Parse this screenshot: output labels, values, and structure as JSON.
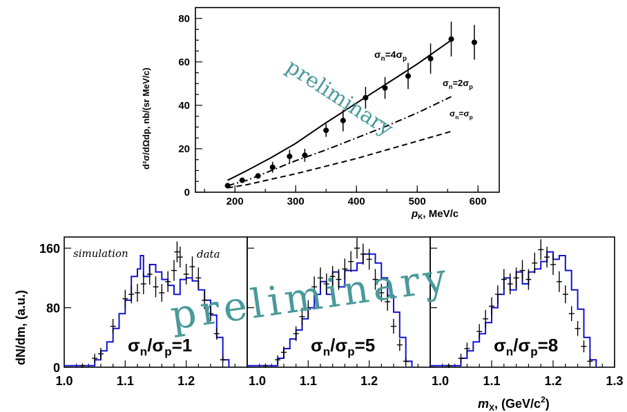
{
  "chart_data": [
    {
      "type": "scatter",
      "xlabel_main": "p",
      "xlabel_sub": "K",
      "xlabel_unit": ", MeV/c",
      "ylabel": "d²σ/dΩdp, nb/(sr MeV/c)",
      "xlim": [
        135,
        635
      ],
      "ylim": [
        0,
        85
      ],
      "x_ticks": [
        200,
        300,
        400,
        500,
        600
      ],
      "y_ticks": [
        0,
        20,
        40,
        60,
        80
      ],
      "points": [
        {
          "x": 188,
          "y": 3,
          "err": 0.6
        },
        {
          "x": 212,
          "y": 5.5,
          "err": 1.2
        },
        {
          "x": 238,
          "y": 7.5,
          "err": 1.3
        },
        {
          "x": 262,
          "y": 11.5,
          "err": 2.5
        },
        {
          "x": 290,
          "y": 16.5,
          "err": 3
        },
        {
          "x": 315,
          "y": 17,
          "err": 3
        },
        {
          "x": 350,
          "y": 28.5,
          "err": 3
        },
        {
          "x": 378,
          "y": 33,
          "err": 5
        },
        {
          "x": 415,
          "y": 43.5,
          "err": 5
        },
        {
          "x": 447,
          "y": 48,
          "err": 5
        },
        {
          "x": 485,
          "y": 53.5,
          "err": 6
        },
        {
          "x": 522,
          "y": 61.5,
          "err": 7
        },
        {
          "x": 556,
          "y": 70.5,
          "err": 8
        },
        {
          "x": 594,
          "y": 69,
          "err": 8
        }
      ],
      "series": [
        {
          "label_prefix": "σ",
          "label_sub1": "n",
          "label_mid": "=4σ",
          "label_sub2": "p",
          "style": "solid",
          "x": [
            188,
            220,
            260,
            300,
            350,
            400,
            450,
            500,
            556
          ],
          "y": [
            5.5,
            10,
            16,
            22.5,
            32,
            41,
            50,
            59,
            70
          ]
        },
        {
          "label_prefix": "σ",
          "label_sub1": "n",
          "label_mid": "=2σ",
          "label_sub2": "p",
          "style": "dashdot",
          "x": [
            188,
            220,
            260,
            300,
            350,
            400,
            450,
            500,
            556
          ],
          "y": [
            3,
            5.5,
            10,
            14.5,
            19.5,
            25,
            30.5,
            36.5,
            44
          ]
        },
        {
          "label_prefix": "σ",
          "label_sub1": "n",
          "label_mid": "=σ",
          "label_sub2": "p",
          "style": "dashed",
          "x": [
            188,
            220,
            260,
            300,
            350,
            400,
            450,
            500,
            556
          ],
          "y": [
            2,
            3.5,
            6,
            8.5,
            12,
            15.5,
            19.5,
            23.5,
            28
          ]
        }
      ],
      "watermark": "preliminary"
    },
    {
      "type": "histogram",
      "ylabel_prefix": "dN/dm, (a.u.)",
      "xlabel_main": "m",
      "xlabel_sub": "X",
      "xlabel_unit": ", (GeV/c",
      "xlabel_sup": "2",
      "xlabel_close": ")",
      "y_ticks": [
        0,
        80,
        160
      ],
      "ylim": [
        0,
        175
      ],
      "legend_sim": "simulation",
      "legend_data": "data",
      "watermark": "preliminary",
      "panels": [
        {
          "ratio_sym": "σ",
          "ratio_n": "n",
          "ratio_slash": "/σ",
          "ratio_p": "p",
          "ratio_val": "=1",
          "xlim": [
            1.0,
            1.3
          ],
          "x_ticks": [
            "1.0",
            "1.1",
            "1.2"
          ],
          "x_tick_vals": [
            1.0,
            1.1,
            1.2
          ],
          "sim": [
            [
              1.0,
              2
            ],
            [
              1.04,
              2
            ],
            [
              1.05,
              10
            ],
            [
              1.06,
              22
            ],
            [
              1.07,
              34
            ],
            [
              1.08,
              52
            ],
            [
              1.09,
              72
            ],
            [
              1.1,
              90
            ],
            [
              1.11,
              122
            ],
            [
              1.12,
              132
            ],
            [
              1.125,
              150
            ],
            [
              1.13,
              122
            ],
            [
              1.14,
              138
            ],
            [
              1.15,
              128
            ],
            [
              1.16,
              118
            ],
            [
              1.17,
              110
            ],
            [
              1.18,
              98
            ],
            [
              1.19,
              118
            ],
            [
              1.2,
              120
            ],
            [
              1.21,
              116
            ],
            [
              1.22,
              104
            ],
            [
              1.23,
              90
            ],
            [
              1.24,
              70
            ],
            [
              1.25,
              40
            ],
            [
              1.26,
              10
            ],
            [
              1.27,
              0
            ]
          ],
          "data": [
            [
              1.03,
              2,
              3
            ],
            [
              1.05,
              12,
              6
            ],
            [
              1.06,
              18,
              8
            ],
            [
              1.08,
              55,
              10
            ],
            [
              1.1,
              92,
              12
            ],
            [
              1.11,
              98,
              12
            ],
            [
              1.12,
              100,
              12
            ],
            [
              1.13,
              112,
              14
            ],
            [
              1.14,
              125,
              14
            ],
            [
              1.15,
              108,
              14
            ],
            [
              1.16,
              100,
              12
            ],
            [
              1.17,
              115,
              14
            ],
            [
              1.18,
              130,
              14
            ],
            [
              1.185,
              155,
              14
            ],
            [
              1.19,
              148,
              14
            ],
            [
              1.2,
              125,
              14
            ],
            [
              1.21,
              135,
              14
            ],
            [
              1.22,
              120,
              14
            ],
            [
              1.23,
              90,
              12
            ],
            [
              1.24,
              72,
              10
            ],
            [
              1.25,
              45,
              8
            ],
            [
              1.26,
              10,
              5
            ]
          ]
        },
        {
          "ratio_sym": "σ",
          "ratio_n": "n",
          "ratio_slash": "/σ",
          "ratio_p": "p",
          "ratio_val": "=5",
          "xlim": [
            1.0,
            1.3
          ],
          "x_ticks": [
            "1.0",
            "1.1",
            "1.2"
          ],
          "x_tick_vals": [
            1.0,
            1.1,
            1.2
          ],
          "sim": [
            [
              1.0,
              2
            ],
            [
              1.04,
              2
            ],
            [
              1.05,
              12
            ],
            [
              1.06,
              25
            ],
            [
              1.07,
              38
            ],
            [
              1.08,
              50
            ],
            [
              1.09,
              65
            ],
            [
              1.1,
              80
            ],
            [
              1.11,
              98
            ],
            [
              1.12,
              115
            ],
            [
              1.13,
              98
            ],
            [
              1.14,
              128
            ],
            [
              1.15,
              108
            ],
            [
              1.16,
              130
            ],
            [
              1.17,
              130
            ],
            [
              1.18,
              140
            ],
            [
              1.19,
              152
            ],
            [
              1.2,
              152
            ],
            [
              1.21,
              140
            ],
            [
              1.22,
              120
            ],
            [
              1.23,
              96
            ],
            [
              1.24,
              74
            ],
            [
              1.25,
              40
            ],
            [
              1.26,
              8
            ],
            [
              1.27,
              0
            ]
          ],
          "data": [
            [
              1.03,
              2,
              3
            ],
            [
              1.05,
              10,
              6
            ],
            [
              1.06,
              20,
              8
            ],
            [
              1.08,
              45,
              10
            ],
            [
              1.09,
              68,
              12
            ],
            [
              1.1,
              78,
              12
            ],
            [
              1.11,
              108,
              14
            ],
            [
              1.12,
              120,
              14
            ],
            [
              1.13,
              112,
              14
            ],
            [
              1.14,
              122,
              14
            ],
            [
              1.15,
              118,
              14
            ],
            [
              1.16,
              132,
              14
            ],
            [
              1.17,
              142,
              14
            ],
            [
              1.18,
              160,
              14
            ],
            [
              1.19,
              152,
              14
            ],
            [
              1.2,
              145,
              14
            ],
            [
              1.21,
              118,
              14
            ],
            [
              1.22,
              100,
              12
            ],
            [
              1.23,
              88,
              12
            ],
            [
              1.24,
              55,
              10
            ],
            [
              1.25,
              30,
              8
            ],
            [
              1.26,
              8,
              5
            ]
          ]
        },
        {
          "ratio_sym": "σ",
          "ratio_n": "n",
          "ratio_slash": "/σ",
          "ratio_p": "p",
          "ratio_val": "=8",
          "xlim": [
            1.0,
            1.3
          ],
          "x_ticks": [
            "1.0",
            "1.1",
            "1.2",
            "1.3"
          ],
          "x_tick_vals": [
            1.0,
            1.1,
            1.2,
            1.3
          ],
          "sim": [
            [
              1.0,
              2
            ],
            [
              1.04,
              2
            ],
            [
              1.05,
              12
            ],
            [
              1.06,
              22
            ],
            [
              1.07,
              34
            ],
            [
              1.08,
              45
            ],
            [
              1.09,
              60
            ],
            [
              1.1,
              80
            ],
            [
              1.11,
              98
            ],
            [
              1.12,
              120
            ],
            [
              1.13,
              104
            ],
            [
              1.14,
              128
            ],
            [
              1.15,
              112
            ],
            [
              1.16,
              128
            ],
            [
              1.17,
              132
            ],
            [
              1.18,
              142
            ],
            [
              1.19,
              155
            ],
            [
              1.2,
              145
            ],
            [
              1.21,
              150
            ],
            [
              1.22,
              130
            ],
            [
              1.23,
              104
            ],
            [
              1.24,
              78
            ],
            [
              1.25,
              40
            ],
            [
              1.26,
              10
            ],
            [
              1.27,
              0
            ]
          ],
          "data": [
            [
              1.03,
              2,
              3
            ],
            [
              1.05,
              12,
              6
            ],
            [
              1.06,
              25,
              8
            ],
            [
              1.08,
              48,
              10
            ],
            [
              1.09,
              65,
              12
            ],
            [
              1.1,
              82,
              12
            ],
            [
              1.11,
              98,
              12
            ],
            [
              1.12,
              118,
              14
            ],
            [
              1.13,
              112,
              14
            ],
            [
              1.14,
              120,
              14
            ],
            [
              1.15,
              130,
              14
            ],
            [
              1.16,
              118,
              14
            ],
            [
              1.17,
              140,
              14
            ],
            [
              1.18,
              158,
              14
            ],
            [
              1.19,
              148,
              14
            ],
            [
              1.2,
              138,
              14
            ],
            [
              1.21,
              115,
              14
            ],
            [
              1.22,
              98,
              12
            ],
            [
              1.23,
              72,
              10
            ],
            [
              1.24,
              52,
              10
            ],
            [
              1.25,
              28,
              8
            ],
            [
              1.26,
              8,
              5
            ]
          ]
        }
      ]
    }
  ]
}
